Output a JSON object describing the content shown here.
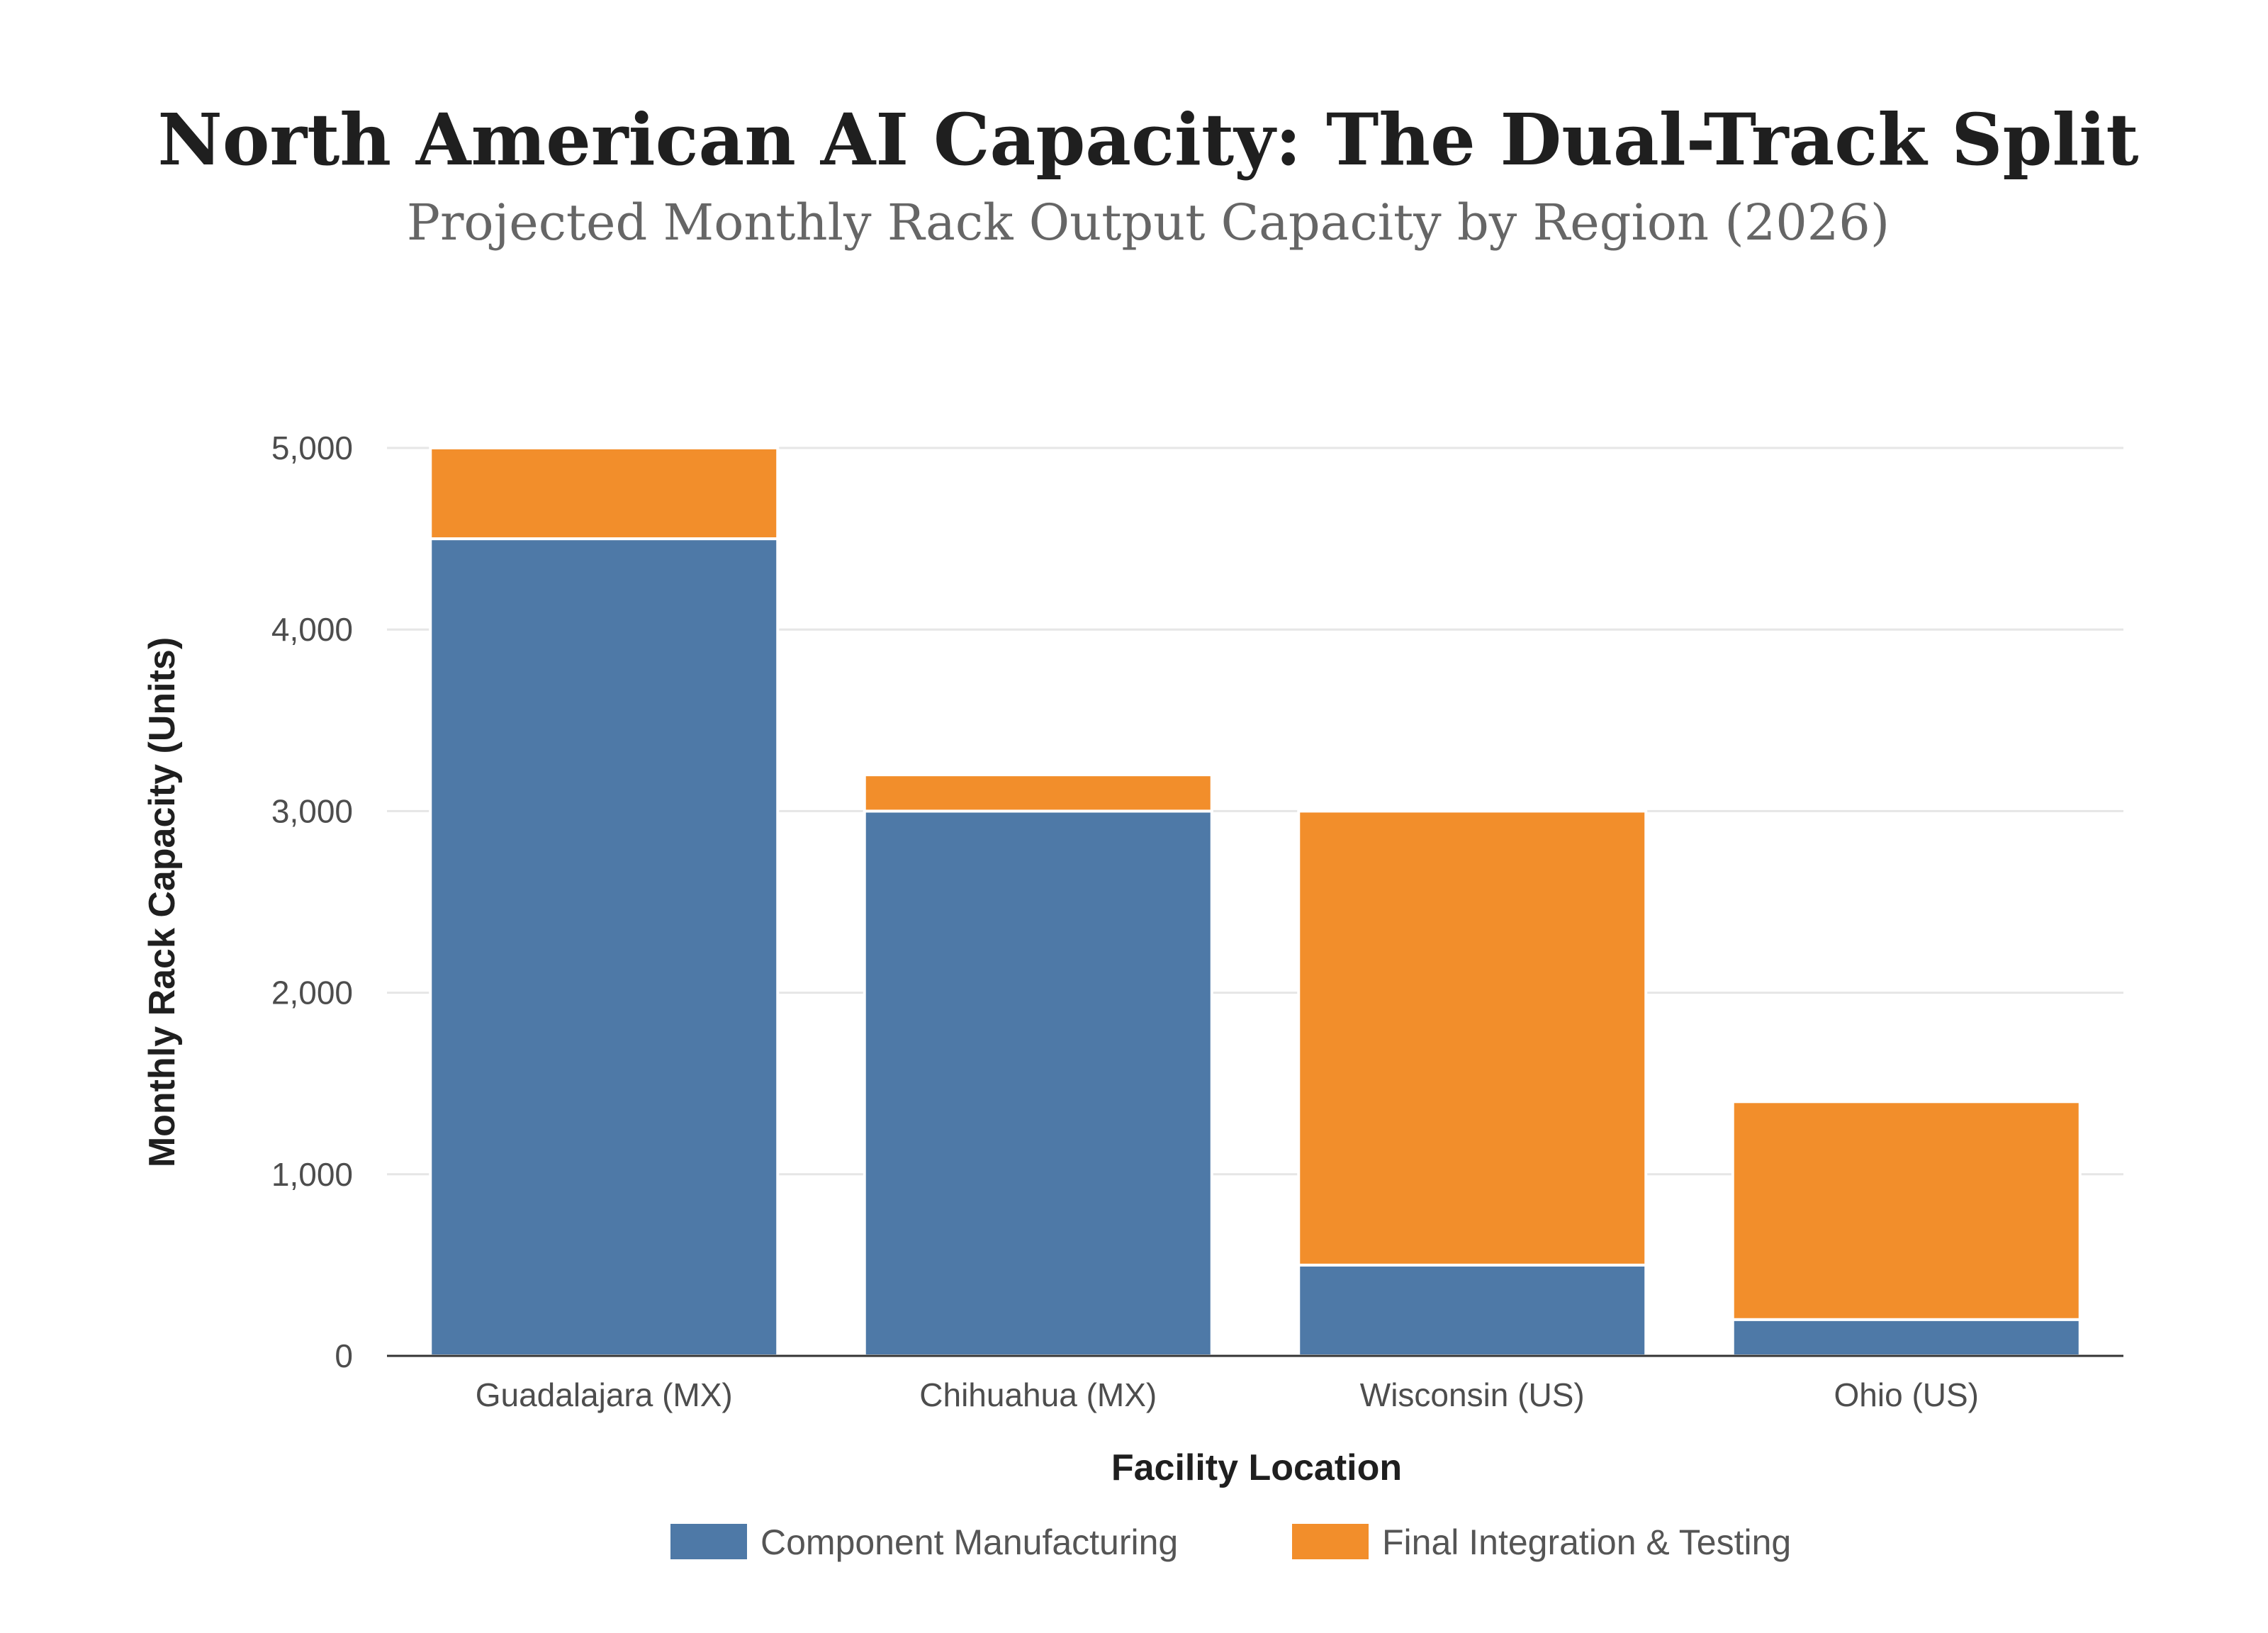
{
  "chart_data": {
    "type": "bar",
    "stacked": true,
    "title": "North American AI Capacity: The Dual-Track Split",
    "subtitle": "Projected Monthly Rack Output Capacity by Region (2026)",
    "xlabel": "Facility Location",
    "ylabel": "Monthly Rack Capacity (Units)",
    "ylim": [
      0,
      5000
    ],
    "yticks": [
      0,
      1000,
      2000,
      3000,
      4000,
      5000
    ],
    "ytick_labels": [
      "0",
      "1,000",
      "2,000",
      "3,000",
      "4,000",
      "5,000"
    ],
    "grid": true,
    "legend_position": "bottom-center",
    "categories": [
      "Guadalajara (MX)",
      "Chihuahua (MX)",
      "Wisconsin (US)",
      "Ohio (US)"
    ],
    "series": [
      {
        "name": "Component Manufacturing",
        "color": "#4e79a7",
        "values": [
          4500,
          3000,
          500,
          200
        ]
      },
      {
        "name": "Final Integration & Testing",
        "color": "#f28e2b",
        "values": [
          500,
          200,
          2500,
          1200
        ]
      }
    ]
  }
}
